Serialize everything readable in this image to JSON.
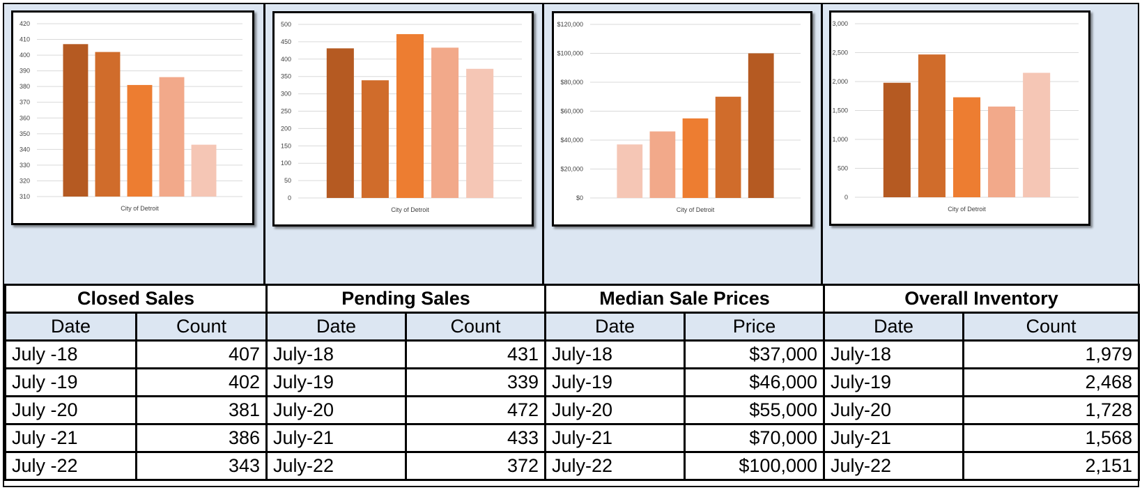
{
  "chart_data": [
    {
      "type": "bar",
      "categories": [
        "July -18",
        "July -19",
        "July -20",
        "July -21",
        "July -22"
      ],
      "values": [
        407,
        402,
        381,
        386,
        343
      ],
      "xlabel": "City of Detroit",
      "ylim": [
        310,
        420
      ],
      "yticks": [
        "310",
        "320",
        "330",
        "340",
        "350",
        "360",
        "370",
        "380",
        "390",
        "400",
        "410",
        "420"
      ],
      "colors": [
        "#b55a22",
        "#d06c2b",
        "#ed7d31",
        "#f2a98a",
        "#f5c6b5"
      ],
      "grid": true
    },
    {
      "type": "bar",
      "categories": [
        "July-18",
        "July-19",
        "July-20",
        "July-21",
        "July-22"
      ],
      "values": [
        431,
        339,
        472,
        433,
        372
      ],
      "xlabel": "City of Detroit",
      "ylim": [
        0,
        500
      ],
      "yticks": [
        "0",
        "50",
        "100",
        "150",
        "200",
        "250",
        "300",
        "350",
        "400",
        "450",
        "500"
      ],
      "colors": [
        "#b55a22",
        "#d06c2b",
        "#ed7d31",
        "#f2a98a",
        "#f5c6b5"
      ],
      "grid": true
    },
    {
      "type": "bar",
      "categories": [
        "July-18",
        "July-19",
        "July-20",
        "July-21",
        "July-22"
      ],
      "values": [
        37000,
        46000,
        55000,
        70000,
        100000
      ],
      "xlabel": "City of Detroit",
      "ylim": [
        0,
        120000
      ],
      "yticks": [
        "$0",
        "$20,000",
        "$40,000",
        "$60,000",
        "$80,000",
        "$100,000",
        "$120,000"
      ],
      "colors": [
        "#f5c6b5",
        "#f2a98a",
        "#ed7d31",
        "#d06c2b",
        "#b55a22"
      ],
      "grid": true
    },
    {
      "type": "bar",
      "categories": [
        "July-18",
        "July-19",
        "July-20",
        "July-21",
        "July-22"
      ],
      "values": [
        1979,
        2468,
        1728,
        1568,
        2151
      ],
      "xlabel": "City of Detroit",
      "ylim": [
        0,
        3000
      ],
      "yticks": [
        "0",
        "500",
        "1,000",
        "1,500",
        "2,000",
        "2,500",
        "3,000"
      ],
      "colors": [
        "#b55a22",
        "#d06c2b",
        "#ed7d31",
        "#f2a98a",
        "#f5c6b5"
      ],
      "grid": true
    }
  ],
  "tables": [
    {
      "title": "Closed Sales",
      "headers": [
        "Date",
        "Count"
      ],
      "rows": [
        [
          "July -18",
          "407"
        ],
        [
          "July -19",
          "402"
        ],
        [
          "July -20",
          "381"
        ],
        [
          "July -21",
          "386"
        ],
        [
          "July -22",
          "343"
        ]
      ]
    },
    {
      "title": "Pending Sales",
      "headers": [
        "Date",
        "Count"
      ],
      "rows": [
        [
          "July-18",
          "431"
        ],
        [
          "July-19",
          "339"
        ],
        [
          "July-20",
          "472"
        ],
        [
          "July-21",
          "433"
        ],
        [
          "July-22",
          "372"
        ]
      ]
    },
    {
      "title": "Median Sale Prices",
      "headers": [
        "Date",
        "Price"
      ],
      "rows": [
        [
          "July-18",
          "$37,000"
        ],
        [
          "July-19",
          "$46,000"
        ],
        [
          "July-20",
          "$55,000"
        ],
        [
          "July-21",
          "$70,000"
        ],
        [
          "July-22",
          "$100,000"
        ]
      ]
    },
    {
      "title": "Overall Inventory",
      "headers": [
        "Date",
        "Count"
      ],
      "rows": [
        [
          "July-18",
          "1,979"
        ],
        [
          "July-19",
          "2,468"
        ],
        [
          "July-20",
          "1,728"
        ],
        [
          "July-21",
          "1,568"
        ],
        [
          "July-22",
          "2,151"
        ]
      ]
    }
  ],
  "colors": {
    "panel_background": "#dce6f2",
    "header_row_background": "#dce6f2",
    "gridline": "#d9d9d9"
  }
}
